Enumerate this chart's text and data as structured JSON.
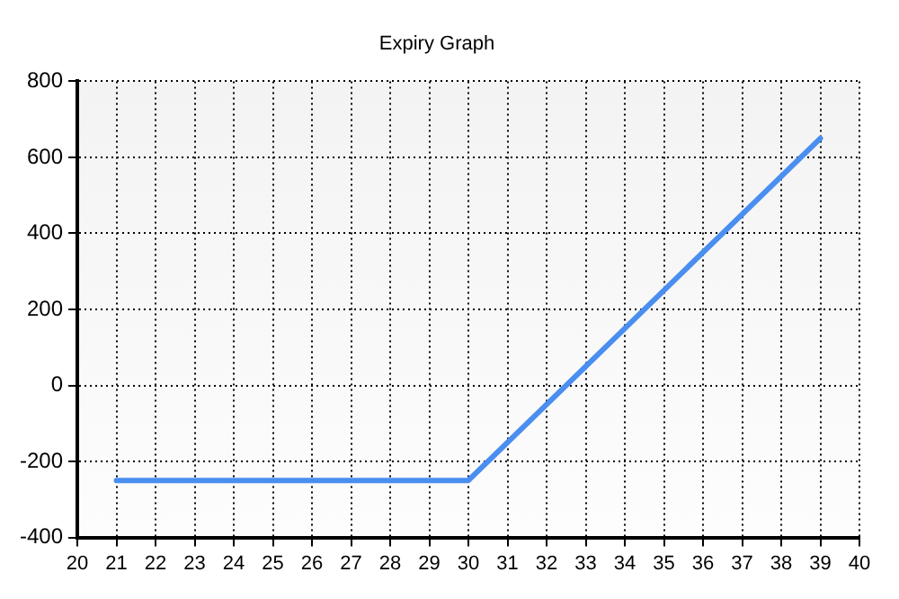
{
  "chart_data": {
    "type": "line",
    "title": "Expiry Graph",
    "x": [
      21,
      30,
      39
    ],
    "series": [
      {
        "color": "#4a8ef0",
        "values": [
          -250,
          -250,
          650
        ]
      }
    ],
    "xlim": [
      20,
      40
    ],
    "xticks": [
      20,
      21,
      22,
      23,
      24,
      25,
      26,
      27,
      28,
      29,
      30,
      31,
      32,
      33,
      34,
      35,
      36,
      37,
      38,
      39,
      40
    ],
    "ylim": [
      -400,
      800
    ],
    "yticks": [
      -400,
      -200,
      0,
      200,
      400,
      600,
      800
    ],
    "grid": true,
    "legend": false,
    "marker": "none",
    "line_style": "solid"
  }
}
